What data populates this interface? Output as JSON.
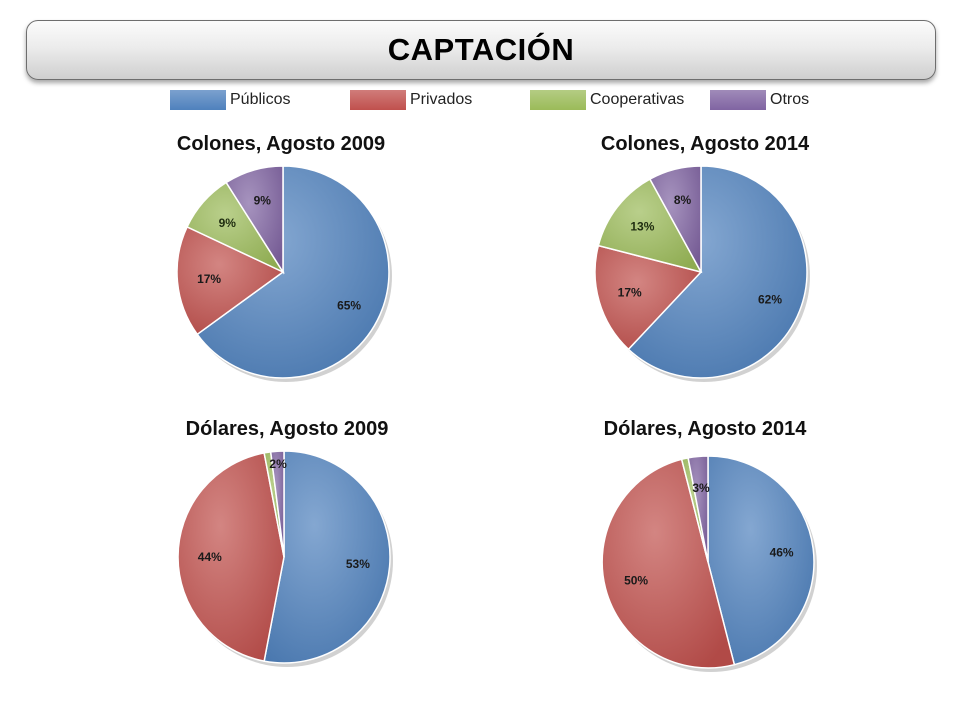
{
  "header": {
    "title": "CAPTACIÓN"
  },
  "legend": [
    {
      "label": "Públicos",
      "color": "#4f81bd"
    },
    {
      "label": "Privados",
      "color": "#c0504d"
    },
    {
      "label": "Cooperativas",
      "color": "#9bbb59"
    },
    {
      "label": "Otros",
      "color": "#8064a2"
    }
  ],
  "chart_data": [
    {
      "type": "pie",
      "title": "Colones, Agosto 2009",
      "categories": [
        "Públicos",
        "Privados",
        "Cooperativas",
        "Otros"
      ],
      "values": [
        65,
        17,
        9,
        9
      ],
      "labels": [
        "65%",
        "17%",
        "9%",
        "9%"
      ]
    },
    {
      "type": "pie",
      "title": "Colones, Agosto 2014",
      "categories": [
        "Públicos",
        "Privados",
        "Cooperativas",
        "Otros"
      ],
      "values": [
        62,
        17,
        13,
        8
      ],
      "labels": [
        "62%",
        "17%",
        "13%",
        "8%"
      ]
    },
    {
      "type": "pie",
      "title": "Dólares, Agosto 2009",
      "categories": [
        "Públicos",
        "Privados",
        "Cooperativas",
        "Otros"
      ],
      "values": [
        53,
        44,
        1,
        2
      ],
      "labels": [
        "53%",
        "44%",
        "",
        "2%"
      ]
    },
    {
      "type": "pie",
      "title": "Dólares, Agosto 2014",
      "categories": [
        "Públicos",
        "Privados",
        "Cooperativas",
        "Otros"
      ],
      "values": [
        46,
        50,
        1,
        3
      ],
      "labels": [
        "46%",
        "50%",
        "",
        "3%"
      ]
    }
  ]
}
